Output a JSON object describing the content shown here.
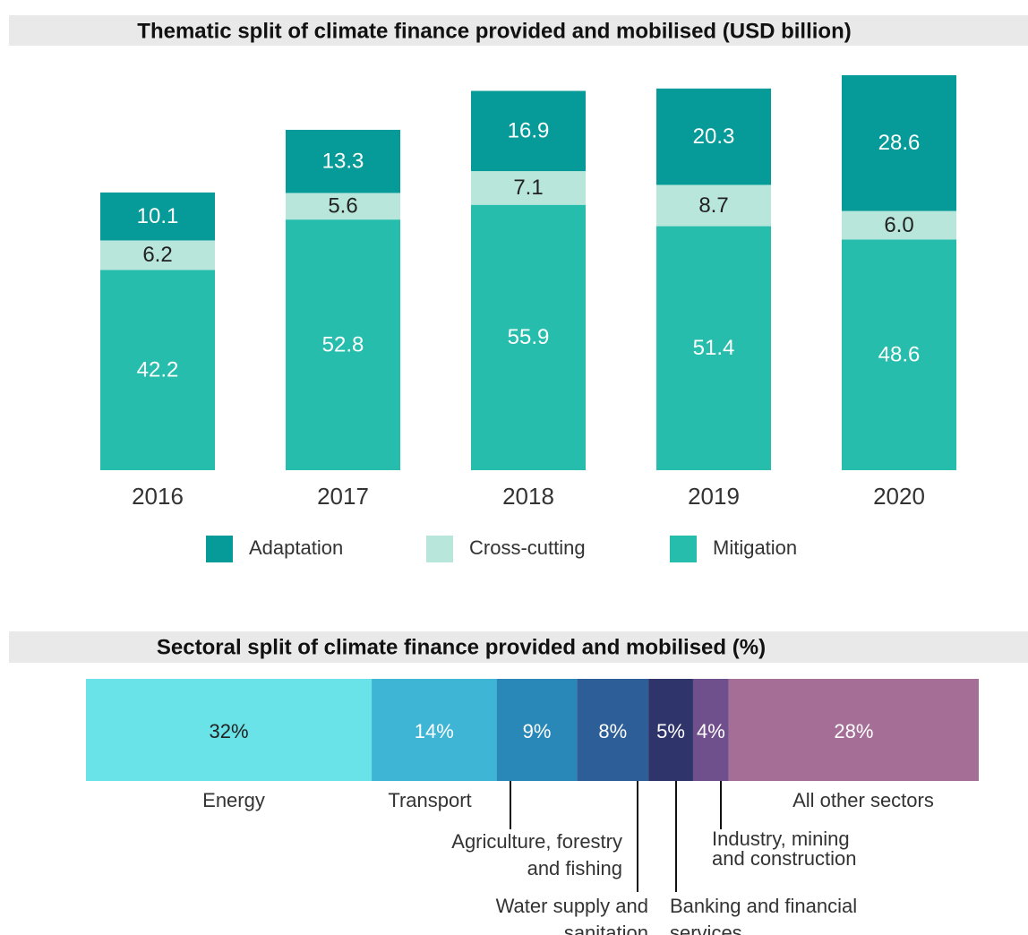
{
  "chart_data": [
    {
      "type": "bar",
      "stacked": true,
      "title": "Thematic split of climate finance provided and mobilised (USD billion)",
      "categories": [
        "2016",
        "2017",
        "2018",
        "2019",
        "2020"
      ],
      "series": [
        {
          "name": "Mitigation",
          "color": "#26bdac",
          "values": [
            42.2,
            52.8,
            55.9,
            51.4,
            48.6
          ]
        },
        {
          "name": "Cross-cutting",
          "color": "#b8e6da",
          "values": [
            6.2,
            5.6,
            7.1,
            8.7,
            6.0
          ],
          "value_labels": [
            "6.2",
            "5.6",
            "7.1",
            "8.7",
            "6.0"
          ]
        },
        {
          "name": "Adaptation",
          "color": "#069a98",
          "values": [
            10.1,
            13.3,
            16.9,
            20.3,
            28.6
          ]
        }
      ],
      "legend_order": [
        "Adaptation",
        "Cross-cutting",
        "Mitigation"
      ]
    },
    {
      "type": "barh",
      "stacked": true,
      "title": "Sectoral split of climate finance provided and mobilised (%)",
      "categories": [
        [
          "Energy"
        ],
        [
          "Transport"
        ],
        [
          "Agriculture, forestry",
          "and fishing"
        ],
        [
          "Water supply and",
          "sanitation"
        ],
        [
          "Banking and financial",
          "services"
        ],
        [
          "Industry, mining",
          "and construction"
        ],
        [
          "All other sectors"
        ]
      ],
      "values": [
        32,
        14,
        9,
        8,
        5,
        4,
        28
      ],
      "value_labels": [
        "32%",
        "14%",
        "9%",
        "8%",
        "5%",
        "4%",
        "28%"
      ],
      "colors": [
        "#6ae3e8",
        "#3fb5d6",
        "#2a88b9",
        "#2d5e98",
        "#2f356b",
        "#6f4f8c",
        "#a56e97"
      ]
    }
  ]
}
